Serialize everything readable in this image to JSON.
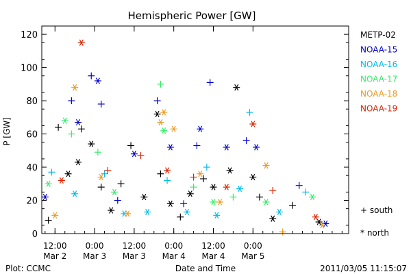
{
  "chart_data": {
    "type": "scatter",
    "title": "Hemispheric Power [GW]",
    "ylabel": "P [GW]",
    "xlabel": "Date and Time",
    "ylim": [
      0,
      125
    ],
    "yticks": [
      0,
      20,
      40,
      60,
      80,
      100,
      120
    ],
    "xlim": [
      "2011-03-02 08:00",
      "2011-03-06 05:00"
    ],
    "xticks": [
      {
        "time": "2011-03-02 12:00",
        "line1": "12:00",
        "line2": "Mar 2"
      },
      {
        "time": "2011-03-03 00:00",
        "line1": "0:00",
        "line2": "Mar 3"
      },
      {
        "time": "2011-03-03 12:00",
        "line1": "12:00",
        "line2": "Mar 3"
      },
      {
        "time": "2011-03-04 00:00",
        "line1": "0:00",
        "line2": "Mar 4"
      },
      {
        "time": "2011-03-04 12:00",
        "line1": "12:00",
        "line2": "Mar 4"
      },
      {
        "time": "2011-03-05 00:00",
        "line1": "0:00",
        "line2": "Mar 5"
      }
    ],
    "grid": false,
    "legend_position": "right",
    "marker_legend": [
      {
        "marker": "plus",
        "label": "+ south"
      },
      {
        "marker": "asterisk",
        "label": "* north"
      }
    ],
    "series": [
      {
        "name": "METP-02",
        "color": "#000000",
        "points": [
          {
            "x": "2011-03-02 10:00",
            "y": 8,
            "m": "plus"
          },
          {
            "x": "2011-03-02 13:00",
            "y": 64,
            "m": "plus"
          },
          {
            "x": "2011-03-02 16:00",
            "y": 36,
            "m": "asterisk"
          },
          {
            "x": "2011-03-02 19:00",
            "y": 43,
            "m": "asterisk"
          },
          {
            "x": "2011-03-02 20:00",
            "y": 63,
            "m": "plus"
          },
          {
            "x": "2011-03-02 23:00",
            "y": 54,
            "m": "asterisk"
          },
          {
            "x": "2011-03-03 02:00",
            "y": 28,
            "m": "plus"
          },
          {
            "x": "2011-03-03 05:00",
            "y": 14,
            "m": "asterisk"
          },
          {
            "x": "2011-03-03 08:00",
            "y": 30,
            "m": "plus"
          },
          {
            "x": "2011-03-03 11:00",
            "y": 53,
            "m": "plus"
          },
          {
            "x": "2011-03-03 15:00",
            "y": 22,
            "m": "asterisk"
          },
          {
            "x": "2011-03-03 19:00",
            "y": 72,
            "m": "asterisk"
          },
          {
            "x": "2011-03-03 20:00",
            "y": 36,
            "m": "plus"
          },
          {
            "x": "2011-03-03 23:00",
            "y": 18,
            "m": "asterisk"
          },
          {
            "x": "2011-03-04 02:00",
            "y": 10,
            "m": "plus"
          },
          {
            "x": "2011-03-04 05:00",
            "y": 24,
            "m": "asterisk"
          },
          {
            "x": "2011-03-04 09:00",
            "y": 33,
            "m": "plus"
          },
          {
            "x": "2011-03-04 12:00",
            "y": 28,
            "m": "asterisk"
          },
          {
            "x": "2011-03-04 17:00",
            "y": 38,
            "m": "asterisk"
          },
          {
            "x": "2011-03-04 19:00",
            "y": 88,
            "m": "asterisk"
          },
          {
            "x": "2011-03-05 00:00",
            "y": 34,
            "m": "asterisk"
          },
          {
            "x": "2011-03-05 02:00",
            "y": 22,
            "m": "plus"
          },
          {
            "x": "2011-03-05 06:00",
            "y": 9,
            "m": "asterisk"
          },
          {
            "x": "2011-03-05 12:00",
            "y": 17,
            "m": "plus"
          },
          {
            "x": "2011-03-05 20:00",
            "y": 7,
            "m": "asterisk"
          }
        ]
      },
      {
        "name": "NOAA-15",
        "color": "#0000cc",
        "points": [
          {
            "x": "2011-03-02 09:00",
            "y": 22,
            "m": "asterisk"
          },
          {
            "x": "2011-03-02 17:00",
            "y": 80,
            "m": "plus"
          },
          {
            "x": "2011-03-02 19:00",
            "y": 67,
            "m": "asterisk"
          },
          {
            "x": "2011-03-02 23:00",
            "y": 95,
            "m": "plus"
          },
          {
            "x": "2011-03-03 01:00",
            "y": 92,
            "m": "asterisk"
          },
          {
            "x": "2011-03-03 02:00",
            "y": 78,
            "m": "plus"
          },
          {
            "x": "2011-03-03 07:00",
            "y": 20,
            "m": "plus"
          },
          {
            "x": "2011-03-03 12:00",
            "y": 48,
            "m": "asterisk"
          },
          {
            "x": "2011-03-03 19:00",
            "y": 80,
            "m": "plus"
          },
          {
            "x": "2011-03-03 23:00",
            "y": 52,
            "m": "asterisk"
          },
          {
            "x": "2011-03-04 03:00",
            "y": 18,
            "m": "plus"
          },
          {
            "x": "2011-03-04 07:00",
            "y": 53,
            "m": "plus"
          },
          {
            "x": "2011-03-04 08:00",
            "y": 63,
            "m": "asterisk"
          },
          {
            "x": "2011-03-04 11:00",
            "y": 91,
            "m": "plus"
          },
          {
            "x": "2011-03-04 16:00",
            "y": 52,
            "m": "asterisk"
          },
          {
            "x": "2011-03-04 22:00",
            "y": 56,
            "m": "plus"
          },
          {
            "x": "2011-03-05 01:00",
            "y": 52,
            "m": "asterisk"
          },
          {
            "x": "2011-03-05 14:00",
            "y": 29,
            "m": "plus"
          },
          {
            "x": "2011-03-05 22:00",
            "y": 6,
            "m": "asterisk"
          }
        ]
      },
      {
        "name": "NOAA-16",
        "color": "#00bbee",
        "points": [
          {
            "x": "2011-03-02 11:00",
            "y": 37,
            "m": "plus"
          },
          {
            "x": "2011-03-02 18:00",
            "y": 24,
            "m": "asterisk"
          },
          {
            "x": "2011-03-03 03:00",
            "y": 36,
            "m": "plus"
          },
          {
            "x": "2011-03-03 09:00",
            "y": 12,
            "m": "asterisk"
          },
          {
            "x": "2011-03-03 16:00",
            "y": 13,
            "m": "asterisk"
          },
          {
            "x": "2011-03-03 22:00",
            "y": 32,
            "m": "plus"
          },
          {
            "x": "2011-03-04 04:00",
            "y": 13,
            "m": "asterisk"
          },
          {
            "x": "2011-03-04 10:00",
            "y": 40,
            "m": "plus"
          },
          {
            "x": "2011-03-04 13:00",
            "y": 11,
            "m": "asterisk"
          },
          {
            "x": "2011-03-04 20:00",
            "y": 27,
            "m": "asterisk"
          },
          {
            "x": "2011-03-04 23:00",
            "y": 73,
            "m": "plus"
          },
          {
            "x": "2011-03-05 08:00",
            "y": 13,
            "m": "asterisk"
          },
          {
            "x": "2011-03-05 16:00",
            "y": 25,
            "m": "plus"
          }
        ]
      },
      {
        "name": "NOAA-17",
        "color": "#33ee66",
        "points": [
          {
            "x": "2011-03-02 10:00",
            "y": 30,
            "m": "asterisk"
          },
          {
            "x": "2011-03-02 15:00",
            "y": 68,
            "m": "asterisk"
          },
          {
            "x": "2011-03-02 17:00",
            "y": 60,
            "m": "plus"
          },
          {
            "x": "2011-03-03 01:00",
            "y": 49,
            "m": "plus"
          },
          {
            "x": "2011-03-03 06:00",
            "y": 25,
            "m": "asterisk"
          },
          {
            "x": "2011-03-03 20:00",
            "y": 90,
            "m": "plus"
          },
          {
            "x": "2011-03-03 21:00",
            "y": 62,
            "m": "asterisk"
          },
          {
            "x": "2011-03-04 06:00",
            "y": 28,
            "m": "plus"
          },
          {
            "x": "2011-03-04 12:00",
            "y": 19,
            "m": "asterisk"
          },
          {
            "x": "2011-03-04 18:00",
            "y": 22,
            "m": "plus"
          },
          {
            "x": "2011-03-05 04:00",
            "y": 19,
            "m": "asterisk"
          },
          {
            "x": "2011-03-05 18:00",
            "y": 22,
            "m": "asterisk"
          }
        ]
      },
      {
        "name": "NOAA-18",
        "color": "#ee9922",
        "points": [
          {
            "x": "2011-03-02 12:00",
            "y": 11,
            "m": "asterisk"
          },
          {
            "x": "2011-03-02 18:00",
            "y": 88,
            "m": "asterisk"
          },
          {
            "x": "2011-03-03 02:00",
            "y": 34,
            "m": "asterisk"
          },
          {
            "x": "2011-03-03 10:00",
            "y": 12,
            "m": "asterisk"
          },
          {
            "x": "2011-03-03 20:00",
            "y": 67,
            "m": "asterisk"
          },
          {
            "x": "2011-03-03 21:00",
            "y": 73,
            "m": "asterisk"
          },
          {
            "x": "2011-03-04 00:00",
            "y": 63,
            "m": "asterisk"
          },
          {
            "x": "2011-03-04 08:00",
            "y": 36,
            "m": "asterisk"
          },
          {
            "x": "2011-03-04 14:00",
            "y": 19,
            "m": "asterisk"
          },
          {
            "x": "2011-03-05 04:00",
            "y": 41,
            "m": "asterisk"
          },
          {
            "x": "2011-03-05 09:00",
            "y": 1,
            "m": "plus"
          },
          {
            "x": "2011-03-05 21:00",
            "y": 5,
            "m": "asterisk"
          }
        ]
      },
      {
        "name": "NOAA-19",
        "color": "#dd2200",
        "points": [
          {
            "x": "2011-03-02 14:00",
            "y": 32,
            "m": "asterisk"
          },
          {
            "x": "2011-03-02 20:00",
            "y": 115,
            "m": "asterisk"
          },
          {
            "x": "2011-03-03 04:00",
            "y": 38,
            "m": "plus"
          },
          {
            "x": "2011-03-03 14:00",
            "y": 47,
            "m": "plus"
          },
          {
            "x": "2011-03-03 22:00",
            "y": 38,
            "m": "asterisk"
          },
          {
            "x": "2011-03-04 06:00",
            "y": 34,
            "m": "plus"
          },
          {
            "x": "2011-03-04 16:00",
            "y": 28,
            "m": "asterisk"
          },
          {
            "x": "2011-03-05 00:00",
            "y": 66,
            "m": "asterisk"
          },
          {
            "x": "2011-03-05 06:00",
            "y": 26,
            "m": "plus"
          },
          {
            "x": "2011-03-05 19:00",
            "y": 10,
            "m": "asterisk"
          }
        ]
      }
    ]
  },
  "footer": {
    "credit": "Plot: CCMC",
    "timestamp": "2011/03/05 11:15:07"
  }
}
